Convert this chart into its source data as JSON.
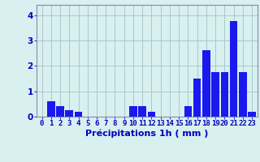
{
  "hours": [
    0,
    1,
    2,
    3,
    4,
    5,
    6,
    7,
    8,
    9,
    10,
    11,
    12,
    13,
    14,
    15,
    16,
    17,
    18,
    19,
    20,
    21,
    22,
    23
  ],
  "values": [
    0.0,
    0.6,
    0.4,
    0.25,
    0.2,
    0.0,
    0.0,
    0.0,
    0.0,
    0.0,
    0.4,
    0.4,
    0.2,
    0.0,
    0.0,
    0.0,
    0.4,
    1.5,
    2.6,
    1.75,
    1.75,
    3.75,
    1.75,
    0.2
  ],
  "bar_color": "#1a1aee",
  "background_color": "#d8f0f0",
  "grid_color": "#aac8c8",
  "axis_color": "#8888aa",
  "tick_color": "#0000bb",
  "label_color": "#0000bb",
  "xlabel": "Précipitations 1h ( mm )",
  "ylim": [
    0,
    4.4
  ],
  "yticks": [
    0,
    1,
    2,
    3,
    4
  ],
  "xlabel_fontsize": 8,
  "tick_fontsize": 6.5
}
